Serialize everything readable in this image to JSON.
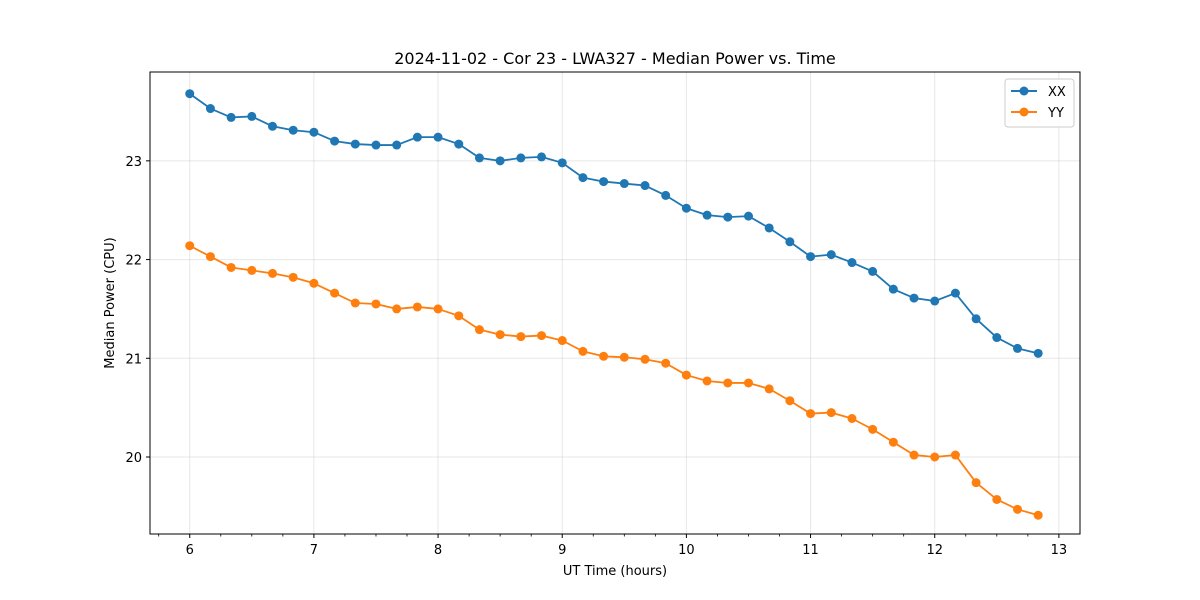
{
  "chart_data": {
    "type": "line",
    "title": "2024-11-02 - Cor 23 - LWA327 - Median Power vs. Time",
    "xlabel": "UT Time (hours)",
    "ylabel": "Median Power (CPU)",
    "xlim": [
      5.68,
      13.17
    ],
    "ylim": [
      19.22,
      23.9
    ],
    "xticks": [
      6,
      7,
      8,
      9,
      10,
      11,
      12,
      13
    ],
    "yticks": [
      20,
      21,
      22,
      23
    ],
    "grid": true,
    "legend_position": "top-right",
    "x": [
      6.0,
      6.1667,
      6.3333,
      6.5,
      6.6667,
      6.8333,
      7.0,
      7.1667,
      7.3333,
      7.5,
      7.6667,
      7.8333,
      8.0,
      8.1667,
      8.3333,
      8.5,
      8.6667,
      8.8333,
      9.0,
      9.1667,
      9.3333,
      9.5,
      9.6667,
      9.8333,
      10.0,
      10.1667,
      10.3333,
      10.5,
      10.6667,
      10.8333,
      11.0,
      11.1667,
      11.3333,
      11.5,
      11.6667,
      11.8333,
      12.0,
      12.1667,
      12.3333,
      12.5,
      12.6667,
      12.8333
    ],
    "series": [
      {
        "name": "XX",
        "color": "#1f77b4",
        "values": [
          23.68,
          23.53,
          23.44,
          23.45,
          23.35,
          23.31,
          23.29,
          23.2,
          23.17,
          23.16,
          23.16,
          23.24,
          23.24,
          23.17,
          23.03,
          23.0,
          23.03,
          23.04,
          22.98,
          22.83,
          22.79,
          22.77,
          22.75,
          22.65,
          22.52,
          22.45,
          22.43,
          22.44,
          22.32,
          22.18,
          22.03,
          22.05,
          21.97,
          21.88,
          21.7,
          21.61,
          21.58,
          21.66,
          21.4,
          21.21,
          21.1,
          21.05
        ]
      },
      {
        "name": "YY",
        "color": "#ff7f0e",
        "values": [
          22.14,
          22.03,
          21.92,
          21.89,
          21.86,
          21.82,
          21.76,
          21.66,
          21.56,
          21.55,
          21.5,
          21.52,
          21.5,
          21.43,
          21.29,
          21.24,
          21.22,
          21.23,
          21.18,
          21.07,
          21.02,
          21.01,
          20.99,
          20.95,
          20.83,
          20.77,
          20.75,
          20.75,
          20.69,
          20.57,
          20.44,
          20.45,
          20.39,
          20.28,
          20.15,
          20.02,
          20.0,
          20.02,
          19.74,
          19.57,
          19.47,
          19.41
        ]
      }
    ]
  }
}
